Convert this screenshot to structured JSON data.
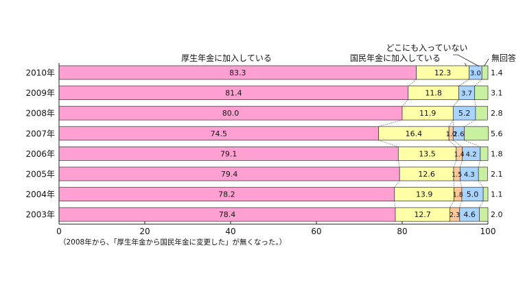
{
  "chart_data": {
    "type": "bar",
    "stacked": true,
    "orientation": "horizontal",
    "categories": [
      "2010年",
      "2009年",
      "2008年",
      "2007年",
      "2006年",
      "2005年",
      "2004年",
      "2003年"
    ],
    "series": [
      {
        "name": "厚生年金に加入している",
        "color": "#FFA0D2",
        "values": [
          83.3,
          81.4,
          80.0,
          74.5,
          79.1,
          79.4,
          78.2,
          78.4
        ],
        "labels": [
          "83.3",
          "81.4",
          "80.0",
          "74.5",
          "79.1",
          "79.4",
          "78.2",
          "78.4"
        ]
      },
      {
        "name": "国民年金に加入している",
        "color": "#FFFFA8",
        "values": [
          12.3,
          11.8,
          11.9,
          16.4,
          13.5,
          12.6,
          13.9,
          12.7
        ],
        "labels": [
          "12.3",
          "11.8",
          "11.9",
          "16.4",
          "13.5",
          "12.6",
          "13.9",
          "12.7"
        ]
      },
      {
        "name": "厚生年金から国民年金に変更した",
        "color": "#FFC89A",
        "values": [
          0,
          0,
          0,
          1.0,
          1.4,
          1.5,
          1.8,
          2.3
        ],
        "labels": [
          "",
          "",
          "",
          "1.0",
          "1.4",
          "1.5",
          "1.8",
          "2.3"
        ]
      },
      {
        "name": "どこにも入っていない",
        "color": "#A8D4FF",
        "values": [
          3.0,
          3.7,
          5.2,
          2.6,
          4.2,
          4.3,
          5.0,
          4.6
        ],
        "labels": [
          "3.0",
          "3.7",
          "5.2",
          "2.6",
          "4.2",
          "4.3",
          "5.0",
          "4.6"
        ]
      },
      {
        "name": "無回答",
        "color": "#C8F0A0",
        "values": [
          1.4,
          3.1,
          2.8,
          5.6,
          1.8,
          2.1,
          1.1,
          2.0
        ],
        "labels": [
          "1.4",
          "3.1",
          "2.8",
          "5.6",
          "1.8",
          "2.1",
          "1.1",
          "2.0"
        ]
      }
    ],
    "xlim": [
      0,
      100
    ],
    "xticks": [
      "0",
      "20",
      "40",
      "60",
      "80",
      "100"
    ],
    "legend_labels": {
      "kosei": "厚生年金に加入している",
      "kokumin": "国民年金に加入している",
      "none": "どこにも入っていない",
      "noanswer": "無回答"
    },
    "note": "（2008年から、「厚生年金から国民年金に変更した」が無くなった。）"
  }
}
